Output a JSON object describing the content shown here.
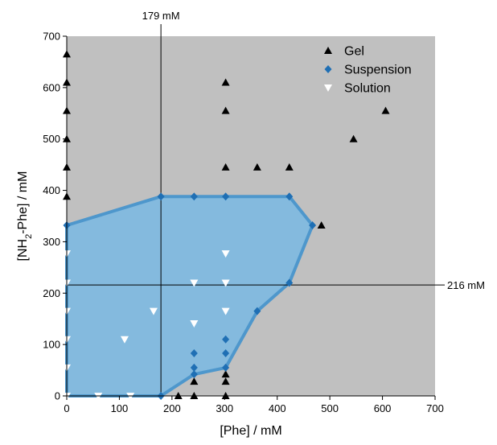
{
  "chart_data": {
    "type": "scatter",
    "xlabel": "[Phe] / mM",
    "ylabel": "[NH2-Phe] / mM",
    "xlim": [
      0,
      700
    ],
    "ylim": [
      0,
      700
    ],
    "xticks": [
      0,
      100,
      200,
      300,
      400,
      500,
      600,
      700
    ],
    "yticks": [
      0,
      100,
      200,
      300,
      400,
      500,
      600,
      700
    ],
    "background_color": "#c0c0c0",
    "region_fill_color": "#84bade",
    "region_edge_color": "#4e97cc",
    "legend_position": "top-right",
    "reference_lines": [
      {
        "orientation": "vertical",
        "value": 179,
        "label": "179 mM"
      },
      {
        "orientation": "horizontal",
        "value": 216,
        "label": "216 mM"
      }
    ],
    "region_boundary": [
      [
        0,
        0
      ],
      [
        179,
        0
      ],
      [
        242,
        42
      ],
      [
        302,
        55
      ],
      [
        362,
        165
      ],
      [
        423,
        220
      ],
      [
        467,
        332
      ],
      [
        423,
        388
      ],
      [
        302,
        388
      ],
      [
        242,
        388
      ],
      [
        179,
        388
      ],
      [
        0,
        332
      ]
    ],
    "series": [
      {
        "name": "Gel",
        "marker": "triangle-up",
        "color": "#000000",
        "points": [
          [
            0,
            665
          ],
          [
            0,
            610
          ],
          [
            0,
            555
          ],
          [
            0,
            500
          ],
          [
            0,
            445
          ],
          [
            0,
            388
          ],
          [
            302,
            610
          ],
          [
            302,
            555
          ],
          [
            302,
            445
          ],
          [
            362,
            445
          ],
          [
            423,
            445
          ],
          [
            545,
            500
          ],
          [
            606,
            555
          ],
          [
            484,
            332
          ],
          [
            242,
            28
          ],
          [
            242,
            0
          ],
          [
            302,
            42
          ],
          [
            302,
            28
          ],
          [
            302,
            0
          ],
          [
            212,
            0
          ]
        ]
      },
      {
        "name": "Suspension",
        "marker": "diamond",
        "color": "#1f6fb4",
        "points": [
          [
            0,
            332
          ],
          [
            179,
            388
          ],
          [
            242,
            388
          ],
          [
            302,
            388
          ],
          [
            423,
            388
          ],
          [
            467,
            332
          ],
          [
            423,
            220
          ],
          [
            362,
            165
          ],
          [
            302,
            110
          ],
          [
            302,
            83
          ],
          [
            242,
            83
          ],
          [
            242,
            55
          ],
          [
            242,
            42
          ],
          [
            302,
            55
          ],
          [
            179,
            0
          ]
        ]
      },
      {
        "name": "Solution",
        "marker": "triangle-down",
        "color": "#ffffff",
        "points": [
          [
            0,
            277
          ],
          [
            0,
            220
          ],
          [
            0,
            165
          ],
          [
            0,
            110
          ],
          [
            0,
            55
          ],
          [
            0,
            0
          ],
          [
            60,
            0
          ],
          [
            121,
            0
          ],
          [
            110,
            110
          ],
          [
            165,
            165
          ],
          [
            242,
            220
          ],
          [
            302,
            277
          ],
          [
            302,
            220
          ],
          [
            302,
            165
          ],
          [
            242,
            141
          ]
        ]
      }
    ]
  }
}
